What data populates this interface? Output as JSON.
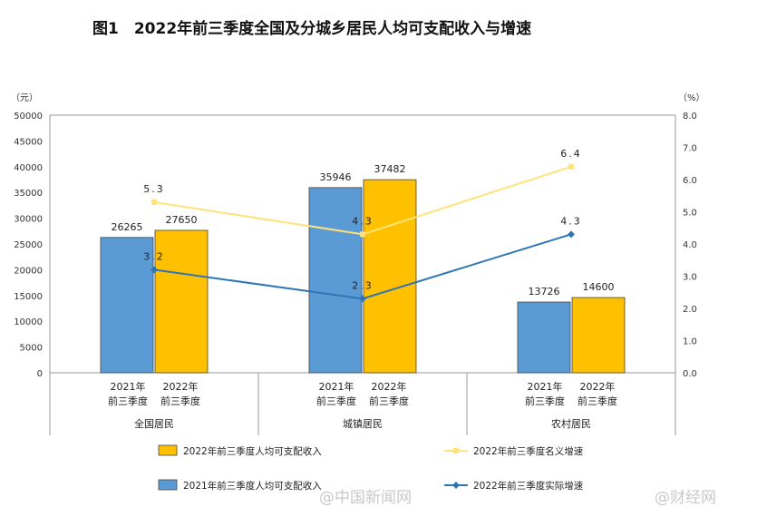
{
  "chart_data": {
    "type": "bar",
    "title": "图1　2022年前三季度全国及分城乡居民人均可支配收入与增速",
    "y_unit": "（元）",
    "y2_unit": "（%）",
    "ylim": [
      0,
      50000
    ],
    "y_ticks": [
      "0",
      "5000",
      "10000",
      "15000",
      "20000",
      "25000",
      "30000",
      "35000",
      "40000",
      "45000",
      "50000"
    ],
    "y2lim": [
      0,
      8
    ],
    "y2_ticks": [
      "0.0",
      "1.0",
      "2.0",
      "3.0",
      "4.0",
      "5.0",
      "6.0",
      "7.0",
      "8.0"
    ],
    "groups": [
      {
        "name": "全国居民",
        "sub": [
          [
            "2021年",
            "前三季度"
          ],
          [
            "2022年",
            "前三季度"
          ]
        ]
      },
      {
        "name": "城镇居民",
        "sub": [
          [
            "2021年",
            "前三季度"
          ],
          [
            "2022年",
            "前三季度"
          ]
        ]
      },
      {
        "name": "农村居民",
        "sub": [
          [
            "2021年",
            "前三季度"
          ],
          [
            "2022年",
            "前三季度"
          ]
        ]
      }
    ],
    "bar_series": [
      {
        "name": "2021年前三季度人均可支配收入",
        "color": "#5b9bd5",
        "values": [
          26265,
          35946,
          13726
        ],
        "labels": [
          "26265",
          "35946",
          "13726"
        ]
      },
      {
        "name": "2022年前三季度人均可支配收入",
        "color": "#ffc000",
        "values": [
          27650,
          37482,
          14600
        ],
        "labels": [
          "27650",
          "37482",
          "14600"
        ]
      }
    ],
    "line_series": [
      {
        "name": "2022年前三季度名义增速",
        "color": "#ffe27a",
        "values": [
          5.3,
          4.3,
          6.4
        ],
        "labels": [
          "5.3",
          "4.3",
          "6.4"
        ]
      },
      {
        "name": "2022年前三季度实际增速",
        "color": "#2e75b6",
        "values": [
          3.2,
          2.3,
          4.3
        ],
        "labels": [
          "3.2",
          "2.3",
          "4.3"
        ]
      }
    ]
  },
  "watermarks": [
    "@中国新闻网",
    "@财经网"
  ]
}
